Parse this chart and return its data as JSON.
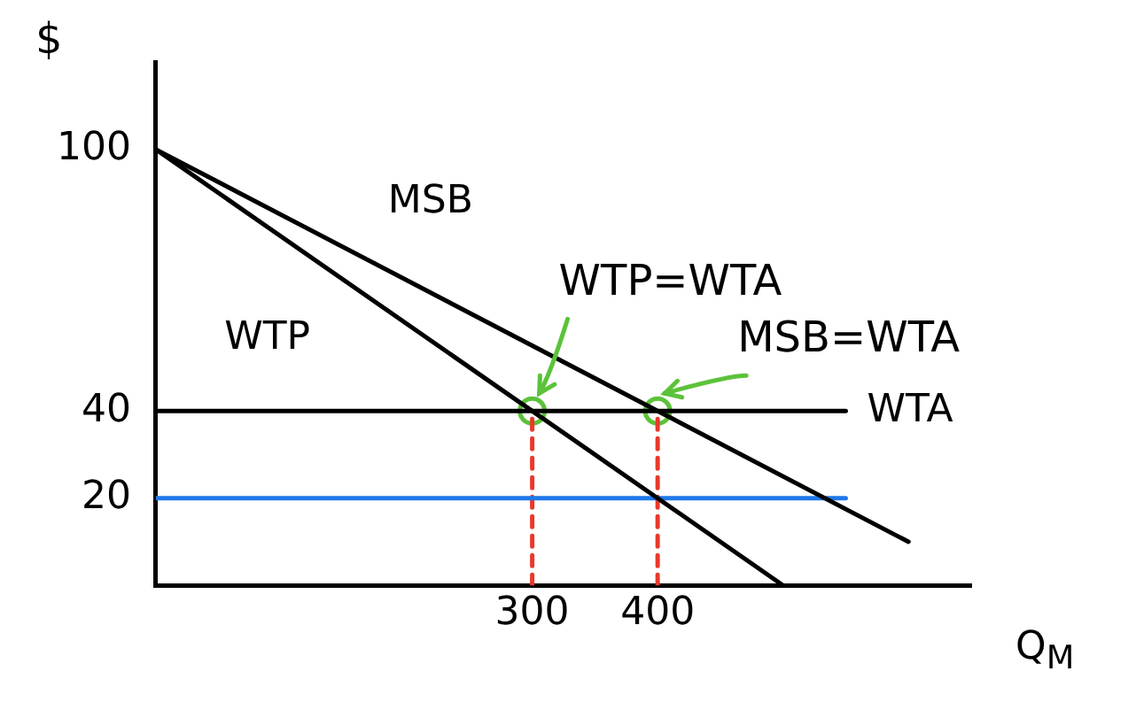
{
  "chart_data": {
    "type": "line",
    "ylabel": "$",
    "xlabel": "Q$_{M}$",
    "xlim": [
      0,
      650
    ],
    "ylim": [
      0,
      120
    ],
    "xticks": [
      300,
      400
    ],
    "yticks": [
      20,
      40,
      100
    ],
    "grid": false,
    "legend": false,
    "series": [
      {
        "name": "MSB",
        "color": "#000000",
        "x": [
          0,
          600
        ],
        "values": [
          100,
          10
        ]
      },
      {
        "name": "WTP",
        "color": "#000000",
        "x": [
          0,
          500
        ],
        "values": [
          100,
          0
        ]
      },
      {
        "name": "WTA",
        "color": "#000000",
        "x": [
          0,
          550
        ],
        "values": [
          40,
          40
        ]
      },
      {
        "color": "#1f78e8",
        "x": [
          0,
          550
        ],
        "values": [
          20,
          20
        ]
      },
      {
        "color": "#e8392b",
        "x": [
          300,
          300
        ],
        "values": [
          0,
          40
        ],
        "line_style": "dashed"
      },
      {
        "color": "#e8392b",
        "x": [
          400,
          400
        ],
        "values": [
          0,
          40
        ],
        "line_style": "dashed"
      },
      {
        "type": "scatter",
        "color": "#5cc23a",
        "x": [
          300,
          400
        ],
        "values": [
          40,
          40
        ],
        "marker": "circle"
      }
    ],
    "annotations": [
      {
        "text": "WTP=WTA",
        "x": 300,
        "y": 40
      },
      {
        "text": "MSB=WTA",
        "x": 400,
        "y": 40
      }
    ]
  }
}
